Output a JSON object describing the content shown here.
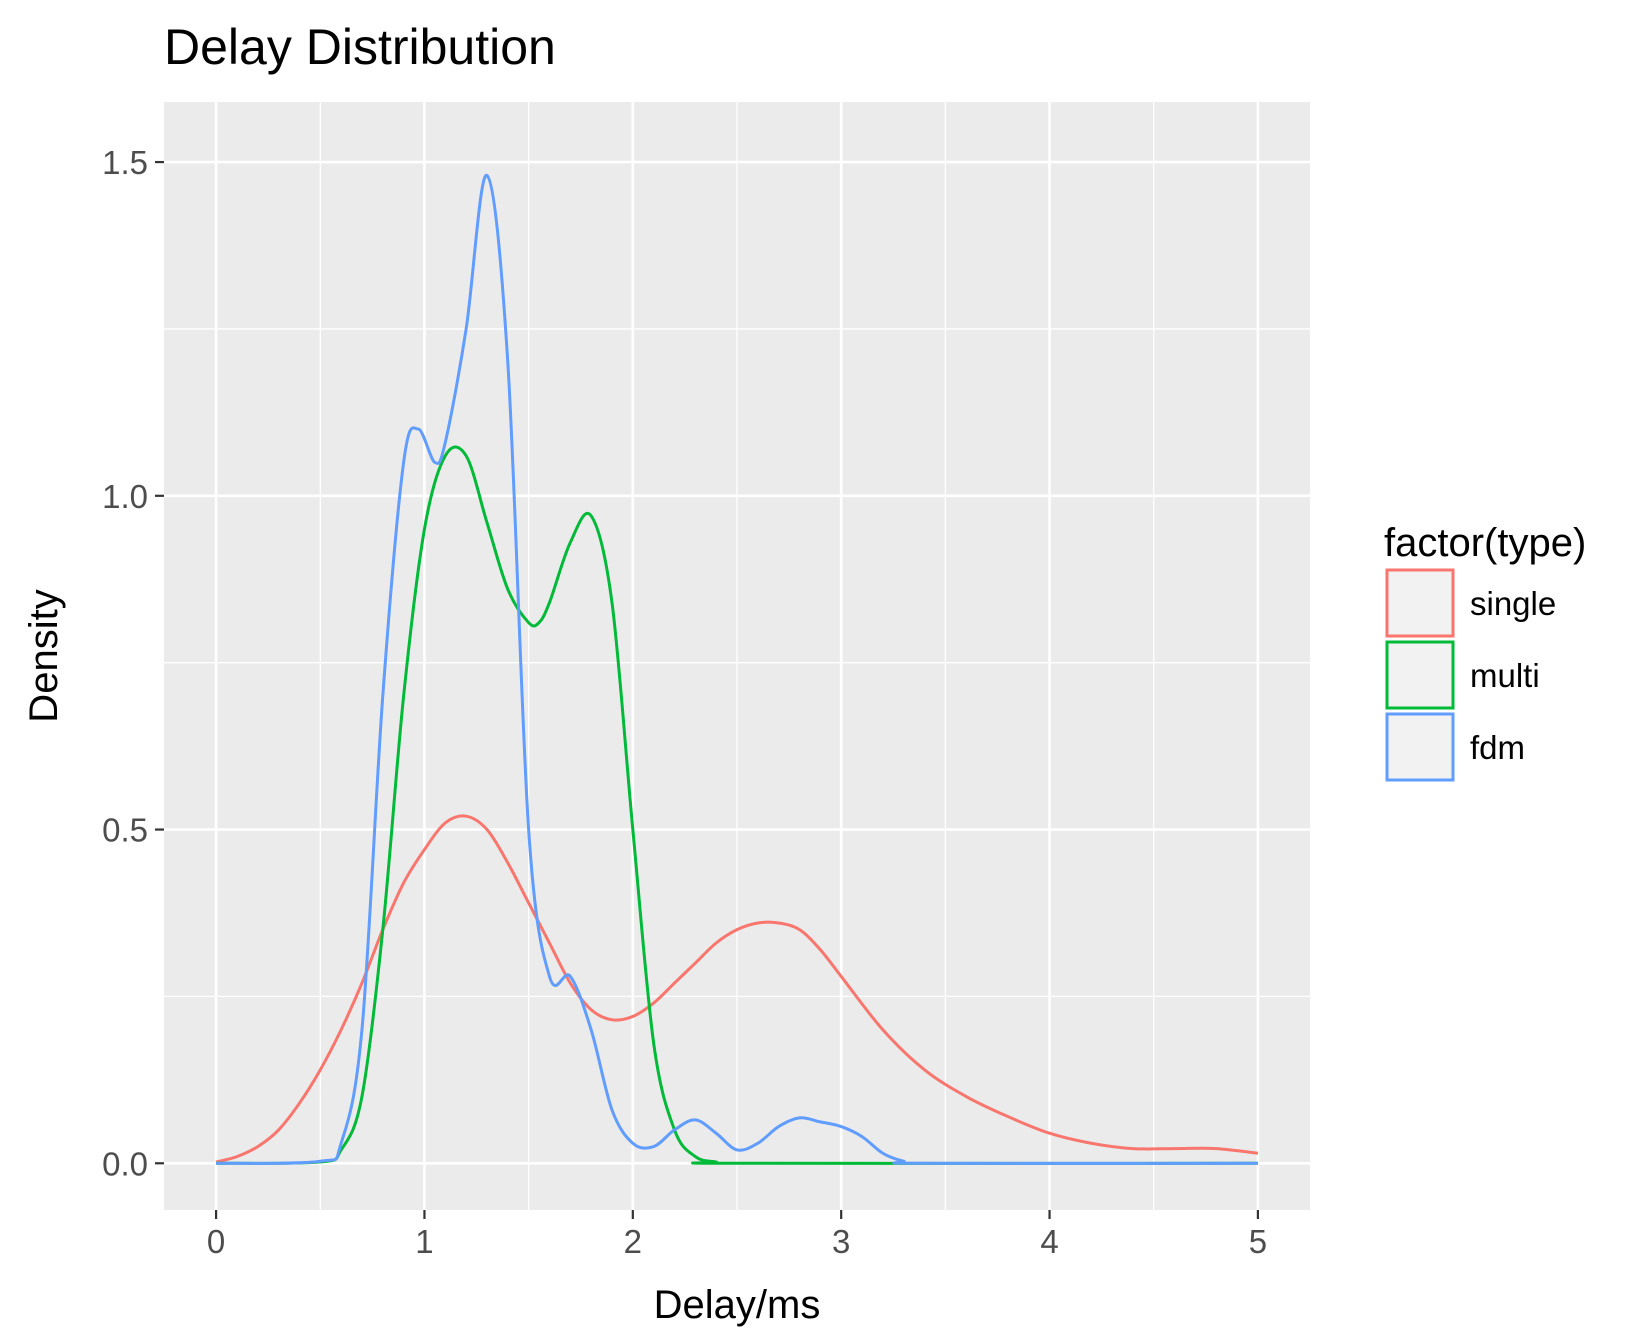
{
  "chart_data": {
    "type": "line",
    "title": "Delay Distribution",
    "xlabel": "Delay/ms",
    "ylabel": "Density",
    "xlim": [
      -0.25,
      5.25
    ],
    "ylim": [
      -0.07,
      1.59
    ],
    "x_ticks": [
      0,
      1,
      2,
      3,
      4,
      5
    ],
    "x_tick_labels": [
      "0",
      "1",
      "2",
      "3",
      "4",
      "5"
    ],
    "y_ticks": [
      0.0,
      0.5,
      1.0,
      1.5
    ],
    "y_tick_labels": [
      "0.0",
      "0.5",
      "1.0",
      "1.5"
    ],
    "grid": true,
    "legend": {
      "title": "factor(type)",
      "position": "right"
    },
    "series": [
      {
        "name": "single",
        "color": "#F8766D",
        "x": [
          0,
          0.1,
          0.2,
          0.3,
          0.4,
          0.5,
          0.6,
          0.7,
          0.8,
          0.9,
          1.0,
          1.1,
          1.2,
          1.3,
          1.4,
          1.5,
          1.6,
          1.7,
          1.8,
          1.9,
          2.0,
          2.1,
          2.2,
          2.3,
          2.4,
          2.5,
          2.6,
          2.7,
          2.8,
          2.9,
          3.0,
          3.2,
          3.4,
          3.6,
          3.8,
          4.0,
          4.2,
          4.4,
          4.6,
          4.8,
          5.0
        ],
        "y": [
          0.002,
          0.01,
          0.025,
          0.05,
          0.09,
          0.14,
          0.2,
          0.27,
          0.35,
          0.42,
          0.47,
          0.51,
          0.52,
          0.5,
          0.45,
          0.39,
          0.33,
          0.27,
          0.23,
          0.215,
          0.22,
          0.24,
          0.27,
          0.3,
          0.33,
          0.35,
          0.36,
          0.36,
          0.35,
          0.32,
          0.28,
          0.2,
          0.14,
          0.1,
          0.07,
          0.045,
          0.03,
          0.022,
          0.022,
          0.022,
          0.015
        ]
      },
      {
        "name": "multi",
        "color": "#00BA38",
        "x": [
          0,
          0.5,
          0.6,
          0.7,
          0.8,
          0.9,
          1.0,
          1.1,
          1.2,
          1.3,
          1.4,
          1.5,
          1.55,
          1.6,
          1.7,
          1.8,
          1.9,
          2.0,
          2.1,
          2.2,
          2.3,
          2.4,
          2.5,
          5.0
        ],
        "y": [
          0,
          0.002,
          0.02,
          0.1,
          0.35,
          0.7,
          0.95,
          1.06,
          1.06,
          0.96,
          0.86,
          0.81,
          0.81,
          0.84,
          0.93,
          0.97,
          0.84,
          0.5,
          0.18,
          0.05,
          0.01,
          0.002,
          0,
          0
        ]
      },
      {
        "name": "fdm",
        "color": "#619CFF",
        "x": [
          0,
          0.5,
          0.6,
          0.7,
          0.8,
          0.9,
          0.97,
          1.05,
          1.1,
          1.2,
          1.3,
          1.4,
          1.5,
          1.6,
          1.7,
          1.8,
          1.9,
          2.0,
          2.1,
          2.2,
          2.3,
          2.4,
          2.5,
          2.6,
          2.7,
          2.8,
          2.9,
          3.0,
          3.1,
          3.2,
          3.3,
          3.4,
          5.0
        ],
        "y": [
          0,
          0.003,
          0.03,
          0.2,
          0.7,
          1.05,
          1.1,
          1.05,
          1.08,
          1.25,
          1.48,
          1.2,
          0.5,
          0.28,
          0.28,
          0.2,
          0.08,
          0.03,
          0.025,
          0.05,
          0.065,
          0.045,
          0.02,
          0.03,
          0.055,
          0.068,
          0.062,
          0.055,
          0.04,
          0.015,
          0.003,
          0,
          0
        ]
      }
    ]
  }
}
